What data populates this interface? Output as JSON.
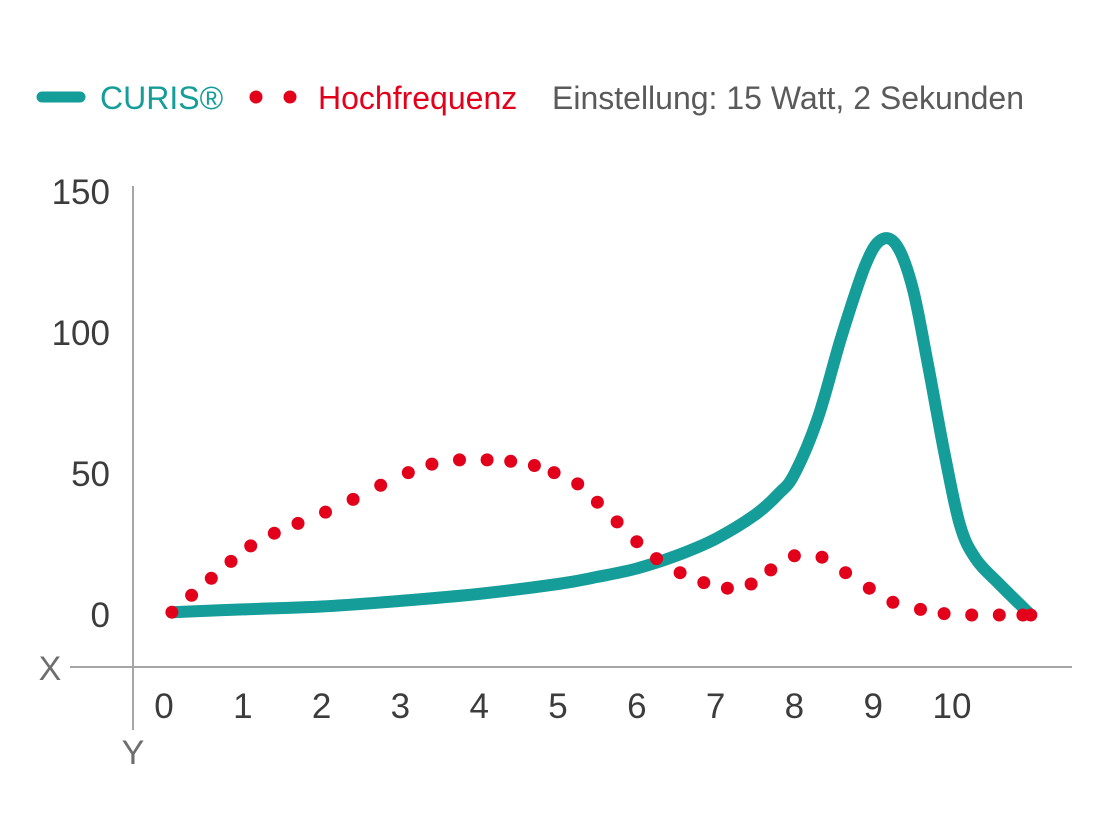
{
  "chart_data": {
    "type": "line",
    "title": "",
    "xlabel": "X",
    "ylabel": "Y",
    "xlim": [
      0,
      11.2
    ],
    "ylim": [
      0,
      150
    ],
    "x_ticks": [
      "0",
      "1",
      "2",
      "3",
      "4",
      "5",
      "6",
      "7",
      "8",
      "9",
      "10"
    ],
    "y_ticks": [
      "0",
      "50",
      "100",
      "150"
    ],
    "grid": false,
    "legend_position": "top",
    "legend_note": "Einstellung: 15 Watt, 2 Sekunden",
    "series": [
      {
        "name": "CURIS®",
        "style": "solid",
        "color": "#159d99",
        "x": [
          0.1,
          1,
          2,
          3,
          4,
          5,
          5.5,
          6,
          6.5,
          7,
          7.5,
          7.8,
          8,
          8.3,
          8.6,
          8.9,
          9.1,
          9.3,
          9.5,
          9.7,
          9.9,
          10.1,
          10.3,
          10.6,
          11.0
        ],
        "y": [
          1,
          2,
          3,
          5,
          7.5,
          11,
          13.5,
          16.5,
          21,
          27,
          35.5,
          43,
          50,
          70,
          99,
          124,
          133,
          131,
          116,
          88,
          58,
          32,
          20,
          11,
          0
        ]
      },
      {
        "name": "Hochfrequenz",
        "style": "dotted",
        "color": "#e3001b",
        "x": [
          0.1,
          0.35,
          0.6,
          0.85,
          1.1,
          1.4,
          1.7,
          2.05,
          2.4,
          2.75,
          3.1,
          3.4,
          3.75,
          4.1,
          4.4,
          4.7,
          4.95,
          5.25,
          5.5,
          5.75,
          6.0,
          6.25,
          6.55,
          6.85,
          7.15,
          7.45,
          7.7,
          8.0,
          8.35,
          8.65,
          8.95,
          9.25,
          9.6,
          9.9,
          10.25,
          10.6,
          10.9,
          11.0
        ],
        "y": [
          1,
          7,
          13,
          19,
          24.5,
          29,
          32.5,
          36.5,
          41,
          46,
          50.5,
          53.5,
          55,
          55,
          54.5,
          53,
          50.5,
          46.5,
          40,
          33,
          26,
          20,
          15,
          11.5,
          9.5,
          11,
          16,
          21,
          20.5,
          15,
          9.5,
          4.5,
          2,
          0.5,
          0,
          0,
          0,
          0
        ]
      }
    ]
  }
}
